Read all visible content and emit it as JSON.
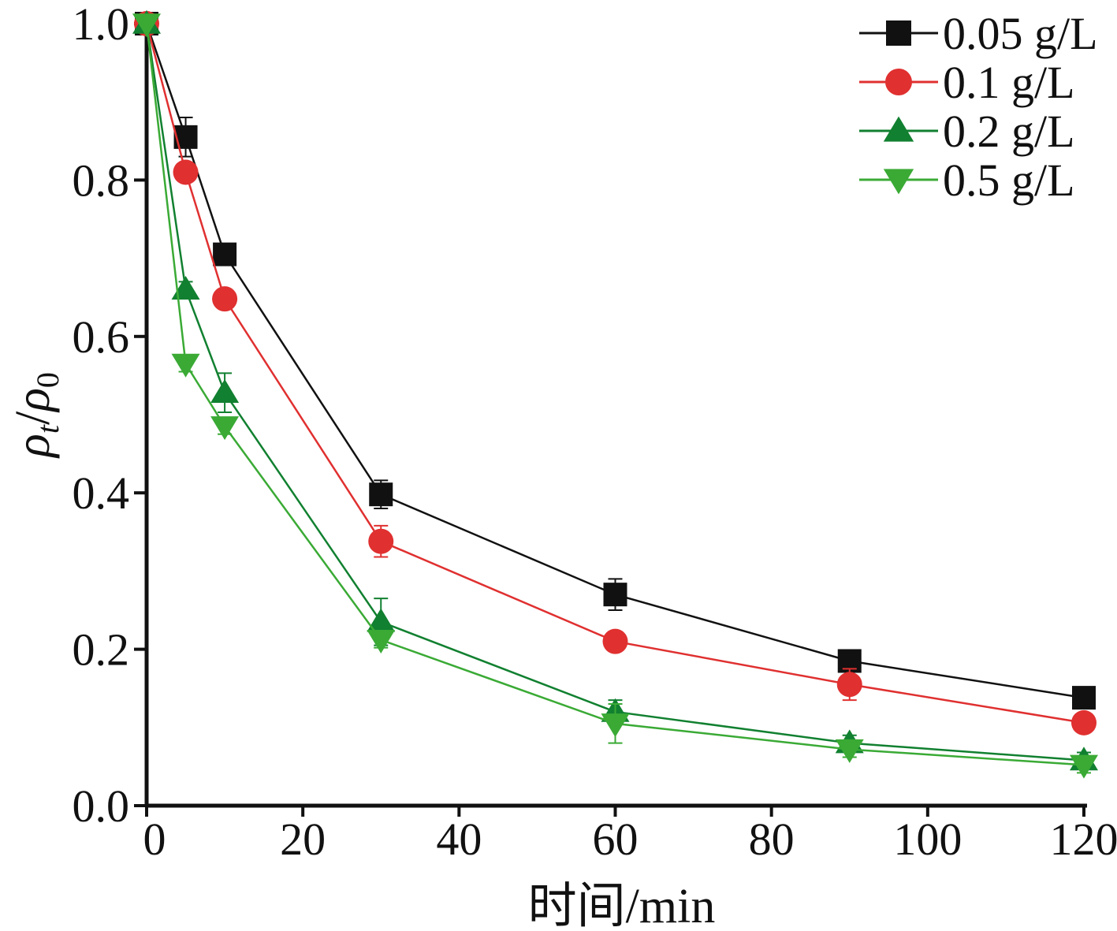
{
  "chart_data": {
    "type": "line",
    "xlabel": "时间/min",
    "ylabel": "ρt/ρ0",
    "ylabel_parts": {
      "main": "ρ",
      "sub1": "t",
      "sep": "/",
      "main2": "ρ",
      "sub2": "0"
    },
    "xlim": [
      0,
      120
    ],
    "ylim": [
      0,
      1.0
    ],
    "xticks": [
      0,
      20,
      40,
      60,
      80,
      100,
      120
    ],
    "xtick_labels": [
      "0",
      "20",
      "40",
      "60",
      "80",
      "100",
      "120"
    ],
    "yticks": [
      0,
      0.2,
      0.4,
      0.6,
      0.8,
      1.0
    ],
    "ytick_labels": [
      "0.0",
      "0.2",
      "0.4",
      "0.6",
      "0.8",
      "1.0"
    ],
    "grid": false,
    "legend_position": "top-right",
    "x": [
      0,
      5,
      10,
      30,
      60,
      90,
      120
    ],
    "series": [
      {
        "name": "0.05 g/L",
        "color": "#111111",
        "marker": "square",
        "values": [
          1.0,
          0.855,
          0.705,
          0.398,
          0.27,
          0.185,
          0.138
        ],
        "errors": [
          0.0,
          0.025,
          0.01,
          0.018,
          0.02,
          0.01,
          0.01
        ]
      },
      {
        "name": "0.1 g/L",
        "color": "#e03030",
        "marker": "circle",
        "values": [
          1.0,
          0.81,
          0.648,
          0.338,
          0.21,
          0.155,
          0.106
        ],
        "errors": [
          0.0,
          0.01,
          0.01,
          0.02,
          0.01,
          0.02,
          0.01
        ]
      },
      {
        "name": "0.2 g/L",
        "color": "#118030",
        "marker": "triangle-up",
        "values": [
          1.0,
          0.66,
          0.528,
          0.235,
          0.12,
          0.08,
          0.058
        ],
        "errors": [
          0.0,
          0.01,
          0.025,
          0.03,
          0.015,
          0.01,
          0.01
        ]
      },
      {
        "name": "0.5 g/L",
        "color": "#3aaa35",
        "marker": "triangle-down",
        "values": [
          1.0,
          0.565,
          0.485,
          0.212,
          0.105,
          0.072,
          0.052
        ],
        "errors": [
          0.0,
          0.01,
          0.01,
          0.01,
          0.025,
          0.01,
          0.01
        ]
      }
    ]
  }
}
